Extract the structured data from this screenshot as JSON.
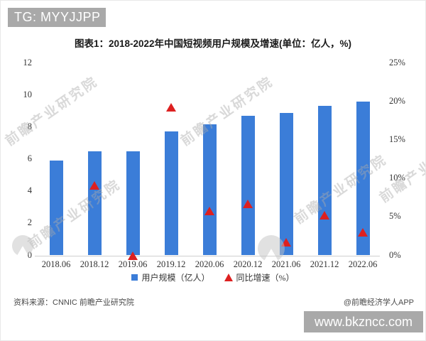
{
  "header": {
    "tg_label": "TG: MYYJJPP"
  },
  "title": "图表1：2018-2022年中国短视频用户规模及增速(单位：亿人，%)",
  "chart_data": {
    "type": "bar",
    "categories": [
      "2018.06",
      "2018.12",
      "2019.06",
      "2019.12",
      "2020.06",
      "2020.12",
      "2021.06",
      "2021.12",
      "2022.06"
    ],
    "series": [
      {
        "name": "用户规模（亿人）",
        "type": "bar",
        "axis": "left",
        "color": "#3b7dd8",
        "values": [
          5.94,
          6.48,
          6.48,
          7.73,
          8.18,
          8.73,
          8.88,
          9.34,
          9.62
        ]
      },
      {
        "name": "同比增速（%）",
        "type": "triangle-scatter",
        "axis": "right",
        "color": "#dd2020",
        "values": [
          null,
          9.1,
          0.0,
          19.3,
          5.8,
          6.7,
          1.7,
          5.2,
          3.0
        ]
      }
    ],
    "left_axis": {
      "ticks": [
        "0",
        "2",
        "4",
        "6",
        "8",
        "10",
        "12"
      ],
      "min": 0,
      "max": 12
    },
    "right_axis": {
      "ticks": [
        "0%",
        "5%",
        "10%",
        "15%",
        "20%",
        "25%"
      ],
      "min": 0,
      "max": 25
    },
    "grid": false,
    "legend_position": "bottom",
    "title": "图表1：2018-2022年中国短视频用户规模及增速(单位：亿人，%)"
  },
  "legend": [
    {
      "marker": "square",
      "color": "#3b7dd8",
      "label": "用户规模（亿人）"
    },
    {
      "marker": "triangle",
      "color": "#dd2020",
      "label": "同比增速（%）"
    }
  ],
  "footer": {
    "source": "资料来源：CNNIC 前瞻产业研究院",
    "credit": "@前瞻经济学人APP"
  },
  "watermarks": {
    "diagonal_text": "前瞻产业研究院",
    "site_badge": "www.bkzncc.com",
    "badge_color": "#a9a9a9",
    "text_color": "rgba(170,170,170,0.45)"
  }
}
